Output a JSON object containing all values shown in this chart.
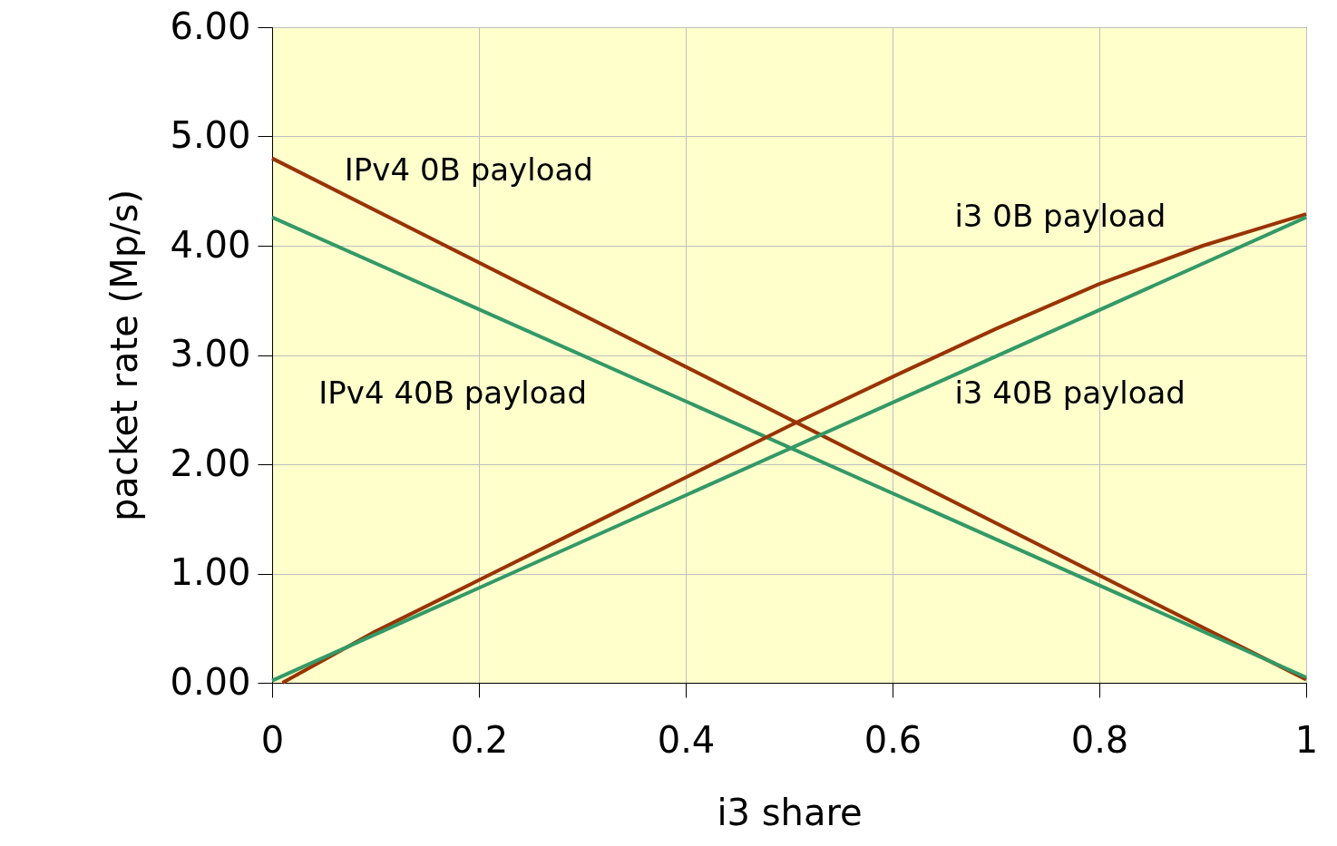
{
  "chart_data": {
    "type": "line",
    "xlabel": "i3 share",
    "ylabel": "packet rate (Mp/s)",
    "xlim": [
      0,
      1
    ],
    "xticks": [
      0,
      0.2,
      0.4,
      0.6,
      0.8,
      1
    ],
    "ylim": [
      0,
      6
    ],
    "yticks": [
      {
        "value": 0,
        "label": "0.00"
      },
      {
        "value": 1,
        "label": "1.00"
      },
      {
        "value": 2,
        "label": "2.00"
      },
      {
        "value": 3,
        "label": "3.00"
      },
      {
        "value": 4,
        "label": "4.00"
      },
      {
        "value": 5,
        "label": "5.00"
      },
      {
        "value": 6,
        "label": "6.00"
      }
    ],
    "grid": true,
    "marker": "none",
    "line_style": "solid",
    "series": [
      {
        "name": "IPv4 0B payload",
        "color": "#993300",
        "x": [
          0,
          1
        ],
        "values": [
          4.8,
          0.03
        ]
      },
      {
        "name": "IPv4 40B payload",
        "color": "#339966",
        "x": [
          0,
          1
        ],
        "values": [
          4.26,
          0.05
        ]
      },
      {
        "name": "i3 0B payload",
        "color": "#993300",
        "x": [
          0.01,
          0.1,
          0.2,
          0.3,
          0.4,
          0.5,
          0.6,
          0.7,
          0.8,
          0.9,
          1
        ],
        "values": [
          0,
          0.47,
          0.94,
          1.41,
          1.88,
          2.35,
          2.8,
          3.24,
          3.65,
          4.0,
          4.29
        ]
      },
      {
        "name": "i3 40B payload",
        "color": "#339966",
        "x": [
          0,
          1
        ],
        "values": [
          0.02,
          4.26
        ]
      }
    ]
  }
}
